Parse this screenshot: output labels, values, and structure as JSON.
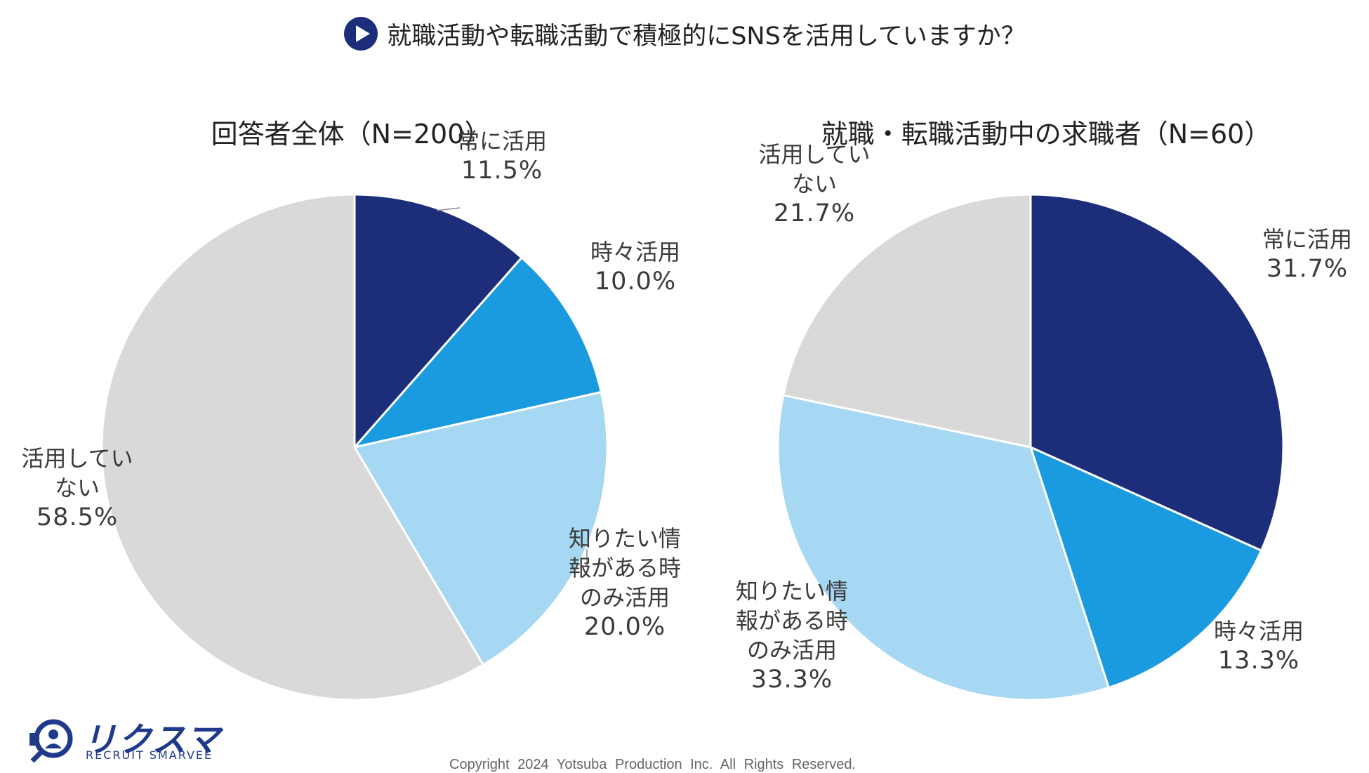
{
  "title": "就職活動や転職活動で積極的にSNSを活用していますか？",
  "colors": {
    "always": "#1c2d7a",
    "sometimes": "#1a9be0",
    "when_needed": "#a6d7f3",
    "not_using": "#d9d9d9",
    "title_icon": "#1c2d7a"
  },
  "chart_data": [
    {
      "type": "pie",
      "title": "回答者全体（N=200）",
      "slices": [
        {
          "label": "常に活用",
          "value": 11.5,
          "display": "11.5%"
        },
        {
          "label": "時々活用",
          "value": 10.0,
          "display": "10.0%"
        },
        {
          "label": "知りたい情報がある時のみ活用",
          "lines": [
            "知りたい情",
            "報がある時",
            "のみ活用"
          ],
          "value": 20.0,
          "display": "20.0%"
        },
        {
          "label": "活用していない",
          "lines": [
            "活用してい",
            "ない"
          ],
          "value": 58.5,
          "display": "58.5%"
        }
      ]
    },
    {
      "type": "pie",
      "title": "就職・転職活動中の求職者（N=60）",
      "slices": [
        {
          "label": "常に活用",
          "value": 31.7,
          "display": "31.7%"
        },
        {
          "label": "時々活用",
          "value": 13.3,
          "display": "13.3%"
        },
        {
          "label": "知りたい情報がある時のみ活用",
          "lines": [
            "知りたい情",
            "報がある時",
            "のみ活用"
          ],
          "value": 33.3,
          "display": "33.3%"
        },
        {
          "label": "活用していない",
          "lines": [
            "活用してい",
            "ない"
          ],
          "value": 21.7,
          "display": "21.7%"
        }
      ]
    }
  ],
  "logo": {
    "name": "リクスマ",
    "sub": "RECRUIT SMARVEE"
  },
  "copyright": "Copyright 2024 Yotsuba Production Inc. All Rights Reserved."
}
